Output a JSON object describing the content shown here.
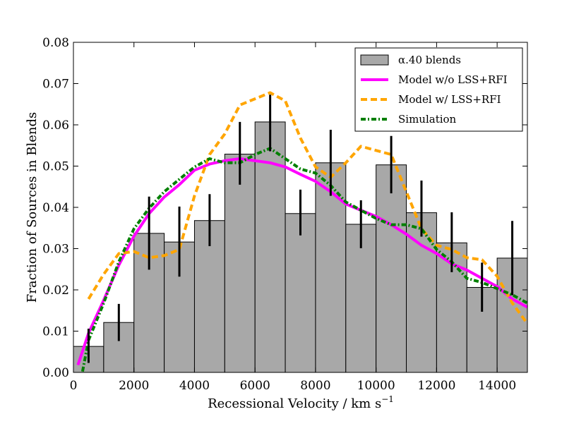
{
  "chart_data": {
    "type": "bar",
    "title": "",
    "xlabel": "Recessional Velocity / km s",
    "xlabel_sup": "−1",
    "ylabel": "Fraction of Sources in Blends",
    "xlim": [
      0,
      15000
    ],
    "ylim": [
      0,
      0.08
    ],
    "grid": false,
    "legend_position": "top-right",
    "x_ticks": [
      0,
      2000,
      4000,
      6000,
      8000,
      10000,
      12000,
      14000
    ],
    "x_tick_labels": [
      "0",
      "2000",
      "4000",
      "6000",
      "8000",
      "10000",
      "12000",
      "14000"
    ],
    "y_ticks": [
      0,
      0.01,
      0.02,
      0.03,
      0.04,
      0.05,
      0.06,
      0.07,
      0.08
    ],
    "y_tick_labels": [
      "0.00",
      "0.01",
      "0.02",
      "0.03",
      "0.04",
      "0.05",
      "0.06",
      "0.07",
      "0.08"
    ],
    "histogram": {
      "name": "α.40 blends",
      "color": "#a8a8a8",
      "bin_edges": [
        0,
        1000,
        2000,
        3000,
        4000,
        5000,
        6000,
        7000,
        8000,
        9000,
        10000,
        11000,
        12000,
        13000,
        14000,
        15000
      ],
      "values": [
        0.0063,
        0.0121,
        0.0337,
        0.0316,
        0.0368,
        0.0529,
        0.0607,
        0.0385,
        0.0508,
        0.0359,
        0.0503,
        0.0387,
        0.0314,
        0.0206,
        0.0277
      ],
      "error_low": [
        0.0023,
        0.0076,
        0.0249,
        0.0232,
        0.0306,
        0.0455,
        0.0536,
        0.0332,
        0.0428,
        0.0301,
        0.0434,
        0.0329,
        0.0243,
        0.0147,
        0.0187
      ],
      "error_high": [
        0.0106,
        0.0166,
        0.0426,
        0.0402,
        0.0432,
        0.0607,
        0.0673,
        0.0443,
        0.0588,
        0.0417,
        0.0573,
        0.0465,
        0.0388,
        0.0266,
        0.0367
      ]
    },
    "series": [
      {
        "name": "Model w/o LSS+RFI",
        "color": "#ff00ff",
        "style": "solid",
        "x": [
          150,
          500,
          1000,
          1500,
          2000,
          2500,
          3000,
          3500,
          4000,
          4500,
          5000,
          5500,
          6000,
          6500,
          7000,
          7500,
          8000,
          8500,
          9000,
          9500,
          10000,
          10500,
          11000,
          11500,
          12000,
          12500,
          13000,
          13500,
          14000,
          14500,
          15000
        ],
        "y": [
          0.0018,
          0.0095,
          0.0175,
          0.026,
          0.033,
          0.0385,
          0.0425,
          0.0455,
          0.049,
          0.0505,
          0.0513,
          0.0518,
          0.0513,
          0.0508,
          0.0498,
          0.048,
          0.0463,
          0.0438,
          0.0408,
          0.0393,
          0.0378,
          0.0358,
          0.0335,
          0.0308,
          0.0288,
          0.0263,
          0.0248,
          0.0228,
          0.0208,
          0.0178,
          0.0158
        ]
      },
      {
        "name": "Model w/ LSS+RFI",
        "color": "#ffa500",
        "style": "dashed",
        "x": [
          500,
          1000,
          1500,
          2000,
          2500,
          3000,
          3500,
          4000,
          4500,
          5000,
          5500,
          6000,
          6500,
          7000,
          7500,
          8000,
          8500,
          9000,
          9500,
          10000,
          10500,
          11000,
          11500,
          12000,
          12500,
          13000,
          13500,
          14000,
          14500,
          15000
        ],
        "y": [
          0.0178,
          0.0238,
          0.0288,
          0.0293,
          0.0278,
          0.0283,
          0.0298,
          0.0428,
          0.0528,
          0.0578,
          0.0648,
          0.0663,
          0.0678,
          0.0658,
          0.0568,
          0.0498,
          0.0473,
          0.0508,
          0.0548,
          0.0538,
          0.0528,
          0.0438,
          0.0348,
          0.0308,
          0.0298,
          0.0278,
          0.0273,
          0.0233,
          0.0168,
          0.0118
        ]
      },
      {
        "name": "Simulation",
        "color": "#007f00",
        "style": "dash-dot",
        "x": [
          300,
          500,
          1000,
          1500,
          2000,
          2500,
          3000,
          3500,
          4000,
          4500,
          5000,
          5500,
          6000,
          6500,
          7000,
          7500,
          8000,
          8500,
          9000,
          9500,
          10000,
          10500,
          11000,
          11500,
          12000,
          12500,
          13000,
          13500,
          14000,
          14500,
          15000
        ],
        "y": [
          0.0002,
          0.0078,
          0.0168,
          0.0268,
          0.0348,
          0.0398,
          0.0438,
          0.0468,
          0.0498,
          0.0518,
          0.0508,
          0.0508,
          0.0528,
          0.0543,
          0.0518,
          0.0493,
          0.0483,
          0.0453,
          0.0413,
          0.0393,
          0.0373,
          0.0358,
          0.0358,
          0.0348,
          0.0298,
          0.0268,
          0.0228,
          0.0218,
          0.0203,
          0.0188,
          0.0168
        ]
      }
    ]
  }
}
